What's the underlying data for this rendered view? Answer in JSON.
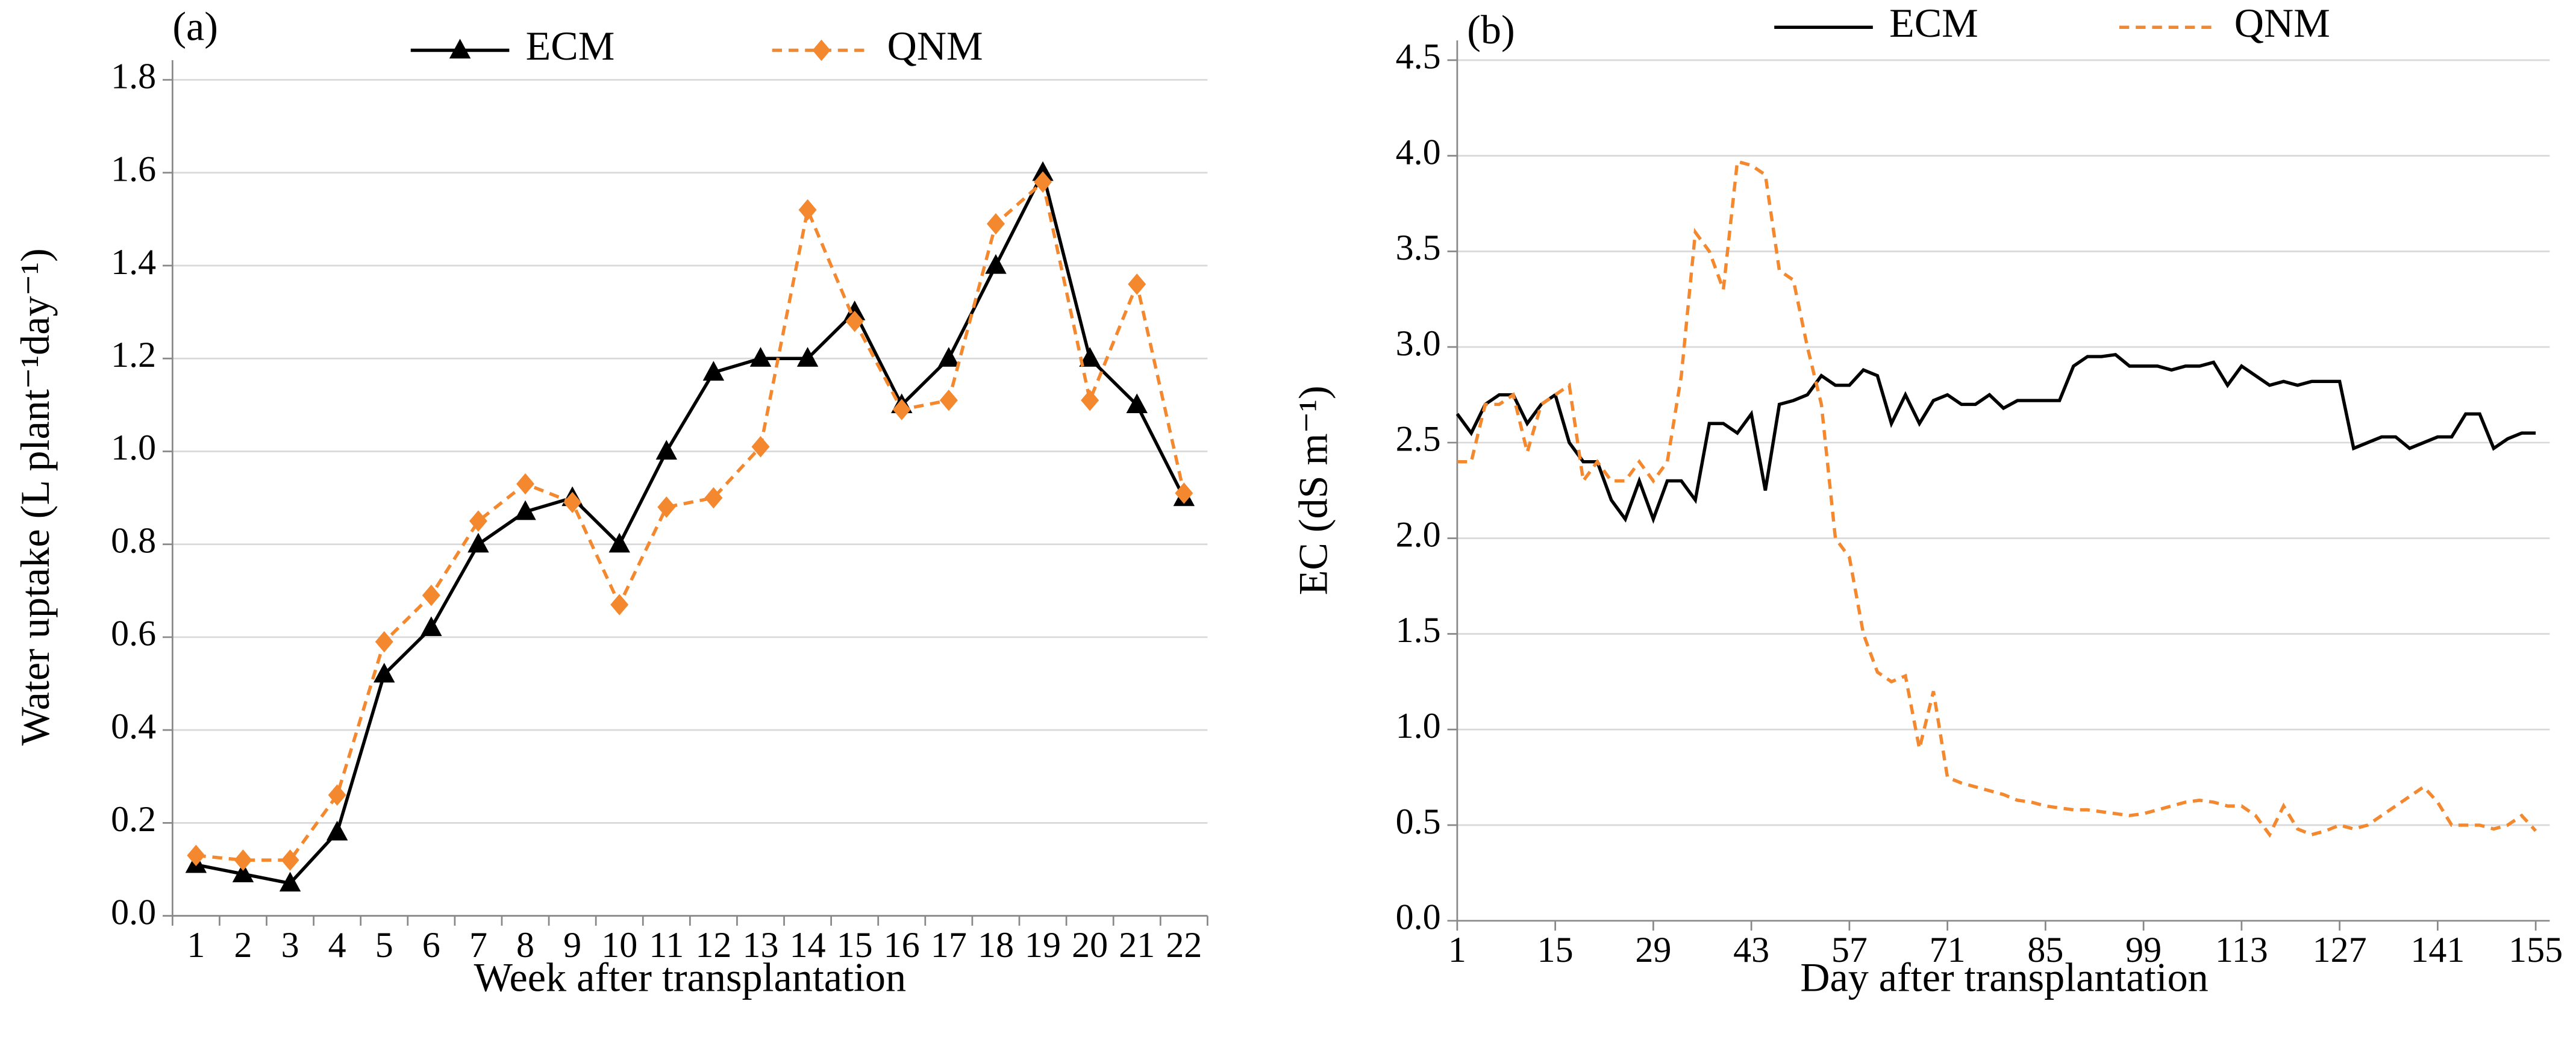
{
  "chart_data": [
    {
      "type": "line",
      "title": "(a)",
      "x_label": "Week after transplantation",
      "y_label": "Water uptake (L plant⁻¹day⁻¹)",
      "categories": [
        "1",
        "2",
        "3",
        "4",
        "5",
        "6",
        "7",
        "8",
        "9",
        "10",
        "11",
        "12",
        "13",
        "14",
        "15",
        "16",
        "17",
        "18",
        "19",
        "20",
        "21",
        "22"
      ],
      "series": [
        {
          "name": "ECM",
          "color": "#000000",
          "marker": "triangle",
          "dashed": false,
          "values": [
            0.11,
            0.09,
            0.07,
            0.18,
            0.52,
            0.62,
            0.8,
            0.87,
            0.9,
            0.8,
            1.0,
            1.17,
            1.2,
            1.2,
            1.3,
            1.1,
            1.2,
            1.4,
            1.6,
            1.2,
            1.1,
            0.9
          ]
        },
        {
          "name": "QNM",
          "color": "#f4882f",
          "marker": "diamond",
          "dashed": true,
          "values": [
            0.13,
            0.12,
            0.12,
            0.26,
            0.59,
            0.69,
            0.85,
            0.93,
            0.89,
            0.67,
            0.88,
            0.9,
            1.01,
            1.52,
            1.28,
            1.09,
            1.11,
            1.49,
            1.58,
            1.11,
            1.36,
            0.91
          ]
        }
      ],
      "ylim": [
        0,
        1.8
      ],
      "yticks": [
        {
          "value": 0,
          "label": "0.0"
        },
        0.2,
        0.4,
        0.6,
        0.8,
        {
          "value": 1,
          "label": "1.0"
        },
        1.2,
        1.4,
        1.6,
        1.8
      ],
      "grid": true
    },
    {
      "type": "line",
      "title": "(b)",
      "x_label": "Day after transplantation",
      "y_label": "EC (dS m⁻¹)",
      "x": [
        1,
        3,
        5,
        7,
        9,
        11,
        13,
        15,
        17,
        19,
        21,
        23,
        25,
        27,
        29,
        31,
        33,
        35,
        37,
        39,
        41,
        43,
        45,
        47,
        49,
        51,
        53,
        55,
        57,
        59,
        61,
        63,
        65,
        67,
        69,
        71,
        73,
        75,
        77,
        79,
        81,
        83,
        85,
        87,
        89,
        91,
        93,
        95,
        97,
        99,
        101,
        103,
        105,
        107,
        109,
        111,
        113,
        115,
        117,
        119,
        121,
        123,
        125,
        127,
        129,
        131,
        133,
        135,
        137,
        139,
        141,
        143,
        145,
        147,
        149,
        151,
        153,
        155
      ],
      "series": [
        {
          "name": "ECM",
          "color": "#000000",
          "dashed": false,
          "values": [
            2.65,
            2.55,
            2.7,
            2.75,
            2.75,
            2.6,
            2.7,
            2.75,
            2.5,
            2.4,
            2.4,
            2.2,
            2.1,
            2.3,
            2.1,
            2.3,
            2.3,
            2.2,
            2.6,
            2.6,
            2.55,
            2.65,
            2.25,
            2.7,
            2.72,
            2.75,
            2.85,
            2.8,
            2.8,
            2.88,
            2.85,
            2.6,
            2.75,
            2.6,
            2.72,
            2.75,
            2.7,
            2.7,
            2.75,
            2.68,
            2.72,
            2.72,
            2.72,
            2.72,
            2.9,
            2.95,
            2.95,
            2.96,
            2.9,
            2.9,
            2.9,
            2.88,
            2.9,
            2.9,
            2.92,
            2.8,
            2.9,
            2.85,
            2.8,
            2.82,
            2.8,
            2.82,
            2.82,
            2.82,
            2.47,
            2.5,
            2.53,
            2.53,
            2.47,
            2.5,
            2.53,
            2.53,
            2.65,
            2.65,
            2.47,
            2.52,
            2.55,
            2.55
          ]
        },
        {
          "name": "QNM",
          "color": "#f4882f",
          "dashed": true,
          "values": [
            2.4,
            2.4,
            2.7,
            2.7,
            2.75,
            2.45,
            2.7,
            2.75,
            2.8,
            2.3,
            2.4,
            2.3,
            2.3,
            2.4,
            2.3,
            2.4,
            2.85,
            3.6,
            3.5,
            3.3,
            3.97,
            3.95,
            3.9,
            3.4,
            3.35,
            3.0,
            2.7,
            2.0,
            1.9,
            1.5,
            1.3,
            1.25,
            1.28,
            0.9,
            1.2,
            0.75,
            0.72,
            0.7,
            0.68,
            0.66,
            0.63,
            0.62,
            0.6,
            0.59,
            0.58,
            0.58,
            0.57,
            0.56,
            0.55,
            0.56,
            0.58,
            0.6,
            0.62,
            0.63,
            0.62,
            0.6,
            0.6,
            0.55,
            0.45,
            0.6,
            0.48,
            0.45,
            0.47,
            0.5,
            0.48,
            0.5,
            0.55,
            0.6,
            0.65,
            0.7,
            0.62,
            0.5,
            0.5,
            0.5,
            0.48,
            0.5,
            0.55,
            0.47
          ]
        }
      ],
      "xlim": [
        1,
        157
      ],
      "xticks": [
        1,
        15,
        29,
        43,
        57,
        71,
        85,
        99,
        113,
        127,
        141,
        155
      ],
      "ylim": [
        0,
        4.5
      ],
      "yticks": [
        {
          "value": 0,
          "label": "0.0"
        },
        0.5,
        {
          "value": 1,
          "label": "1.0"
        },
        1.5,
        {
          "value": 2,
          "label": "2.0"
        },
        2.5,
        {
          "value": 3,
          "label": "3.0"
        },
        3.5,
        {
          "value": 4,
          "label": "4.0"
        },
        4.5
      ],
      "grid": true
    }
  ]
}
